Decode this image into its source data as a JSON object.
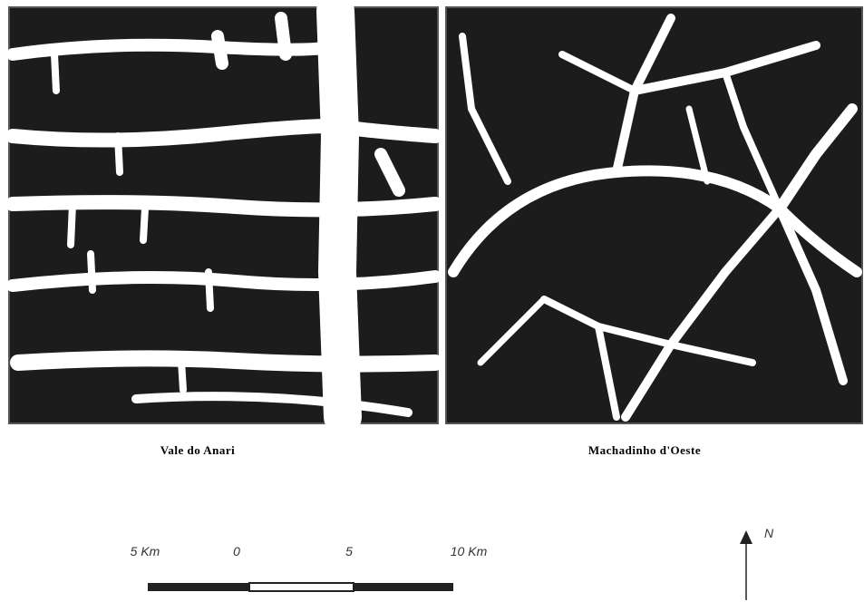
{
  "panels": [
    {
      "caption": "Vale do Anari"
    },
    {
      "caption": "Machadinho d'Oeste"
    }
  ],
  "scale_bar": {
    "labels": [
      "5 Km",
      "0",
      "5",
      "10 Km"
    ]
  },
  "north_arrow": {
    "label": "N"
  }
}
